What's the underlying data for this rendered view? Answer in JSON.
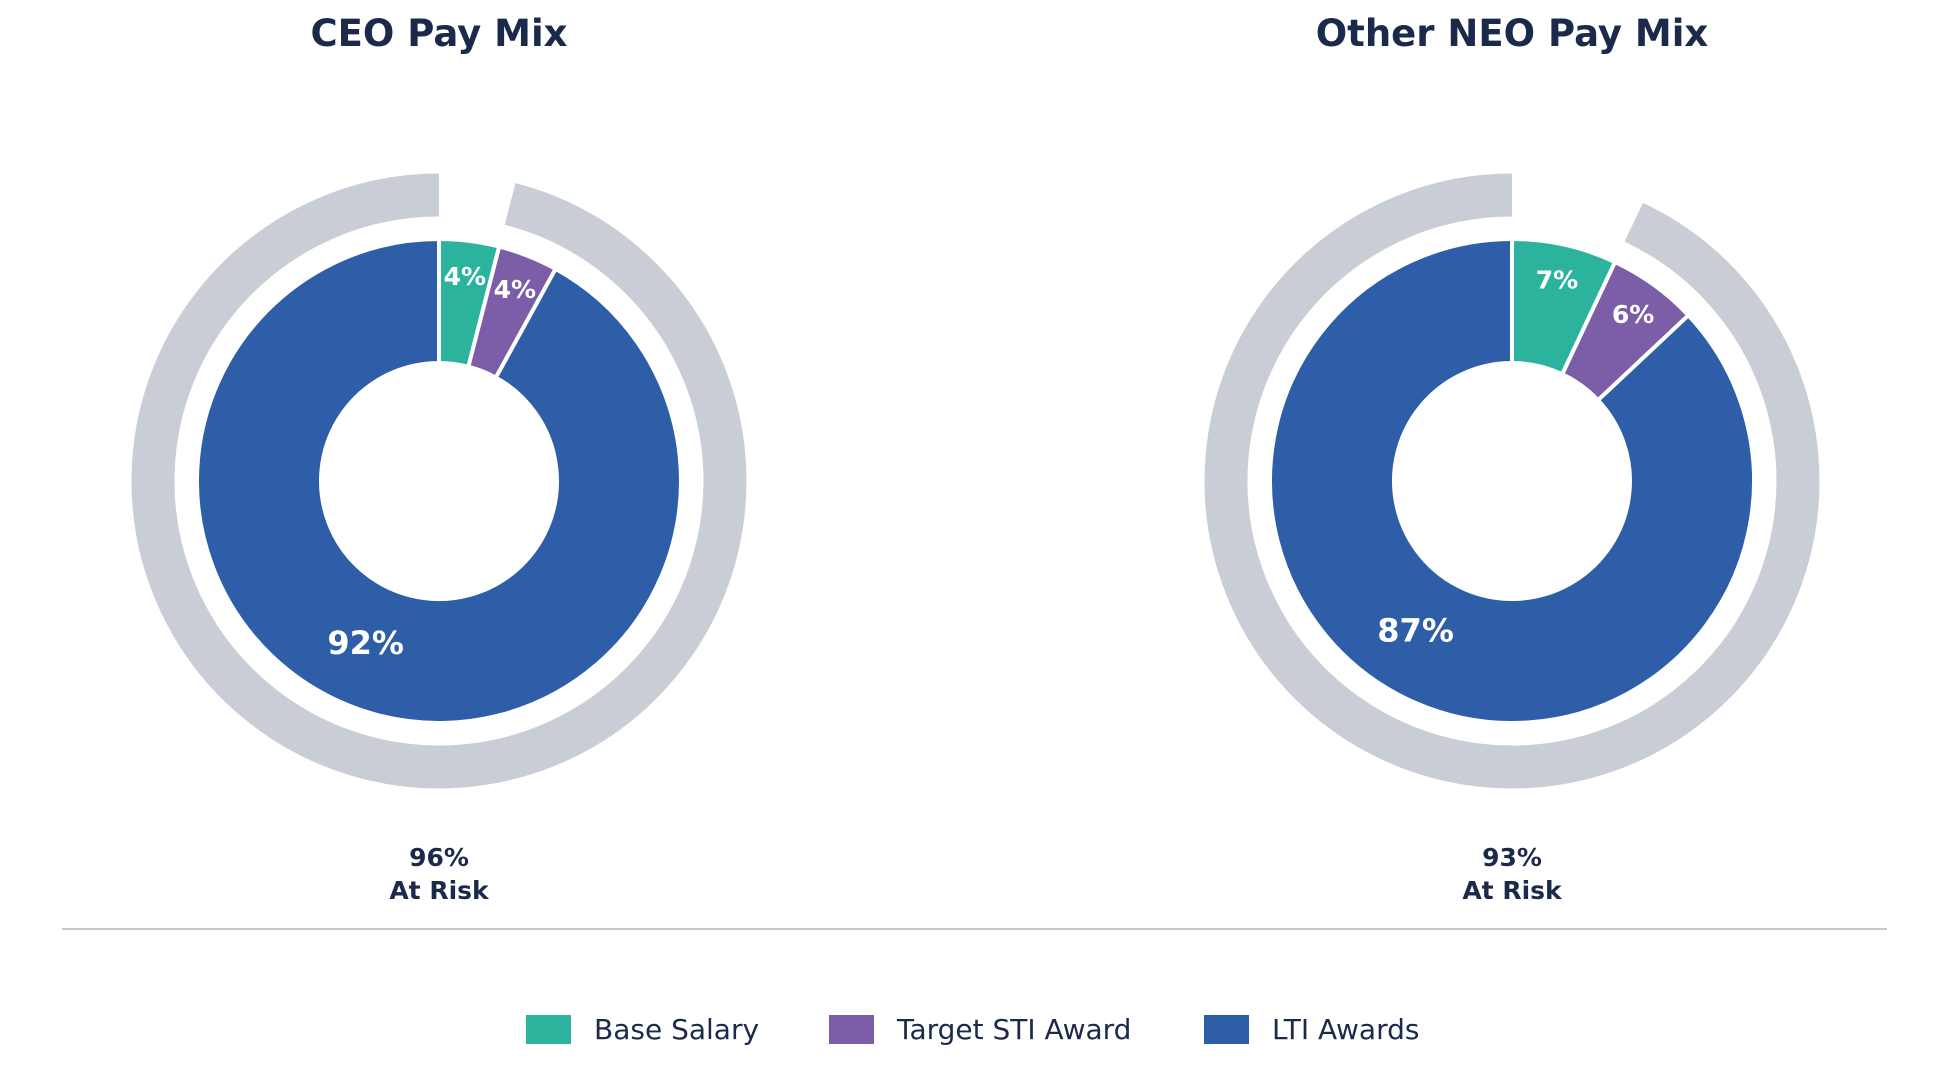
{
  "colors": {
    "base_salary": "#2bb39d",
    "target_sti": "#7b5ea7",
    "lti": "#2d5ea7",
    "at_risk_ring": "#c9cdd5",
    "title": "#1b2a4a",
    "slice_label": "#ffffff",
    "divider": "#c7c9cc",
    "background": "#ffffff"
  },
  "chart_data": [
    {
      "type": "pie",
      "title": "CEO Pay Mix",
      "categories": [
        "Base Salary",
        "Target STI Award",
        "LTI Awards"
      ],
      "values": [
        4,
        4,
        92
      ],
      "slice_labels": [
        "4%",
        "4%",
        "92%"
      ],
      "at_risk": {
        "value": 96,
        "label": "96%",
        "caption": "At Risk"
      }
    },
    {
      "type": "pie",
      "title": "Other NEO Pay Mix",
      "categories": [
        "Base Salary",
        "Target STI Award",
        "LTI Awards"
      ],
      "values": [
        7,
        6,
        87
      ],
      "slice_labels": [
        "7%",
        "6%",
        "87%"
      ],
      "at_risk": {
        "value": 93,
        "label": "93%",
        "caption": "At Risk"
      }
    }
  ],
  "legend": {
    "placement": "bottom-center",
    "items": [
      {
        "label": "Base Salary",
        "color_key": "base_salary"
      },
      {
        "label": "Target STI Award",
        "color_key": "target_sti"
      },
      {
        "label": "LTI Awards",
        "color_key": "lti"
      }
    ]
  }
}
